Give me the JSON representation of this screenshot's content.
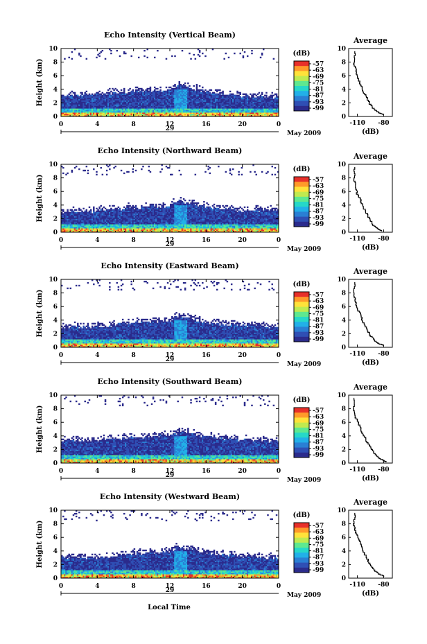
{
  "figure": {
    "xlabel": "Local Time",
    "date_label": "May 2009",
    "day_label": "29",
    "colorbar_unit": "(dB)",
    "profile_title": "Average",
    "profile_xlabel": "(dB)"
  },
  "colors": {
    "colormap": [
      "#2b2b8c",
      "#2f4fb4",
      "#2a7fd4",
      "#22b0e8",
      "#26d8c8",
      "#5ee890",
      "#c0ea50",
      "#ffe23a",
      "#ff9a2a",
      "#e8302a"
    ]
  },
  "chart_data": [
    {
      "type": "heatmap",
      "title": "Echo Intensity (Vertical Beam)",
      "ylabel": "Height (km)",
      "x_ticks": [
        "0",
        "4",
        "8",
        "12",
        "16",
        "20",
        "0"
      ],
      "y_ticks": [
        "0",
        "2",
        "4",
        "6",
        "8",
        "10"
      ],
      "xlim": [
        0,
        24
      ],
      "ylim": [
        0,
        10
      ],
      "colorbar": {
        "label": "(dB)",
        "ticks": [
          "-57",
          "-63",
          "-69",
          "-75",
          "-81",
          "-87",
          "-93",
          "-99"
        ]
      },
      "echo_top_km": [
        [
          0,
          3.0
        ],
        [
          4,
          3.2
        ],
        [
          8,
          3.7
        ],
        [
          12,
          3.9
        ],
        [
          13,
          4.6
        ],
        [
          16,
          3.6
        ],
        [
          20,
          3.0
        ],
        [
          24,
          2.8
        ]
      ],
      "profile": {
        "title": "Average",
        "xlabel": "(dB)",
        "x_ticks": [
          "-110",
          "-80"
        ],
        "y_ticks": [
          "0",
          "2",
          "4",
          "6",
          "8",
          "10"
        ],
        "points": [
          [
            -113,
            9.6
          ],
          [
            -114,
            8.0
          ],
          [
            -112,
            7.0
          ],
          [
            -110,
            6.0
          ],
          [
            -107,
            5.0
          ],
          [
            -104,
            4.0
          ],
          [
            -100,
            3.0
          ],
          [
            -96,
            2.0
          ],
          [
            -90,
            1.0
          ],
          [
            -84,
            0.5
          ],
          [
            -80,
            0.3
          ]
        ]
      }
    },
    {
      "type": "heatmap",
      "title": "Echo Intensity (Northward Beam)",
      "ylabel": "Height (km)",
      "x_ticks": [
        "0",
        "4",
        "8",
        "12",
        "16",
        "20",
        "0"
      ],
      "y_ticks": [
        "0",
        "2",
        "4",
        "6",
        "8",
        "10"
      ],
      "xlim": [
        0,
        24
      ],
      "ylim": [
        0,
        10
      ],
      "colorbar": {
        "label": "(dB)",
        "ticks": [
          "-57",
          "-63",
          "-69",
          "-75",
          "-81",
          "-87",
          "-93",
          "-99"
        ]
      },
      "echo_top_km": [
        [
          0,
          3.0
        ],
        [
          4,
          3.1
        ],
        [
          8,
          3.6
        ],
        [
          12,
          3.9
        ],
        [
          13,
          4.6
        ],
        [
          16,
          3.7
        ],
        [
          20,
          3.2
        ],
        [
          24,
          3.2
        ]
      ],
      "profile": {
        "title": "Average",
        "xlabel": "(dB)",
        "x_ticks": [
          "-110",
          "-80"
        ],
        "y_ticks": [
          "0",
          "2",
          "4",
          "6",
          "8",
          "10"
        ],
        "points": [
          [
            -113,
            9.6
          ],
          [
            -114,
            8.0
          ],
          [
            -112,
            6.8
          ],
          [
            -110,
            5.6
          ],
          [
            -107,
            5.0
          ],
          [
            -104,
            4.0
          ],
          [
            -100,
            3.0
          ],
          [
            -96,
            2.0
          ],
          [
            -91,
            1.0
          ],
          [
            -85,
            0.4
          ],
          [
            -82,
            0.2
          ]
        ]
      }
    },
    {
      "type": "heatmap",
      "title": "Echo Intensity (Eastward Beam)",
      "ylabel": "Height (km)",
      "x_ticks": [
        "0",
        "4",
        "8",
        "12",
        "16",
        "20",
        "0"
      ],
      "y_ticks": [
        "0",
        "2",
        "4",
        "6",
        "8",
        "10"
      ],
      "xlim": [
        0,
        24
      ],
      "ylim": [
        0,
        10
      ],
      "colorbar": {
        "label": "(dB)",
        "ticks": [
          "-57",
          "-63",
          "-69",
          "-75",
          "-81",
          "-87",
          "-93",
          "-99"
        ]
      },
      "echo_top_km": [
        [
          0,
          3.0
        ],
        [
          4,
          3.0
        ],
        [
          8,
          3.6
        ],
        [
          12,
          3.9
        ],
        [
          13,
          4.6
        ],
        [
          16,
          3.6
        ],
        [
          20,
          3.2
        ],
        [
          24,
          3.0
        ]
      ],
      "profile": {
        "title": "Average",
        "xlabel": "(dB)",
        "x_ticks": [
          "-110",
          "-80"
        ],
        "y_ticks": [
          "0",
          "2",
          "4",
          "6",
          "8",
          "10"
        ],
        "points": [
          [
            -113,
            9.6
          ],
          [
            -114,
            8.0
          ],
          [
            -112,
            6.8
          ],
          [
            -110,
            5.8
          ],
          [
            -107,
            5.0
          ],
          [
            -104,
            4.0
          ],
          [
            -100,
            3.0
          ],
          [
            -96,
            2.0
          ],
          [
            -90,
            1.0
          ],
          [
            -84,
            0.5
          ],
          [
            -80,
            0.3
          ]
        ]
      }
    },
    {
      "type": "heatmap",
      "title": "Echo Intensity (Southward Beam)",
      "ylabel": "Height (km)",
      "x_ticks": [
        "0",
        "4",
        "8",
        "12",
        "16",
        "20",
        "0"
      ],
      "y_ticks": [
        "0",
        "2",
        "4",
        "6",
        "8",
        "10"
      ],
      "xlim": [
        0,
        24
      ],
      "ylim": [
        0,
        10
      ],
      "colorbar": {
        "label": "(dB)",
        "ticks": [
          "-57",
          "-63",
          "-69",
          "-75",
          "-81",
          "-87",
          "-93",
          "-99"
        ]
      },
      "echo_top_km": [
        [
          0,
          3.2
        ],
        [
          4,
          3.3
        ],
        [
          8,
          3.8
        ],
        [
          12,
          4.0
        ],
        [
          13,
          4.6
        ],
        [
          16,
          3.9
        ],
        [
          20,
          3.4
        ],
        [
          24,
          3.2
        ]
      ],
      "profile": {
        "title": "Average",
        "xlabel": "(dB)",
        "x_ticks": [
          "-110",
          "-80"
        ],
        "y_ticks": [
          "0",
          "2",
          "4",
          "6",
          "8",
          "10"
        ],
        "points": [
          [
            -114,
            9.6
          ],
          [
            -114,
            8.0
          ],
          [
            -112,
            6.8
          ],
          [
            -109,
            6.0
          ],
          [
            -106,
            5.0
          ],
          [
            -102,
            4.0
          ],
          [
            -98,
            3.0
          ],
          [
            -93,
            2.0
          ],
          [
            -87,
            1.0
          ],
          [
            -80,
            0.4
          ],
          [
            -77,
            0.2
          ]
        ]
      }
    },
    {
      "type": "heatmap",
      "title": "Echo Intensity (Westward Beam)",
      "ylabel": "Height (km)",
      "x_ticks": [
        "0",
        "4",
        "8",
        "12",
        "16",
        "20",
        "0"
      ],
      "y_ticks": [
        "0",
        "2",
        "4",
        "6",
        "8",
        "10"
      ],
      "xlim": [
        0,
        24
      ],
      "ylim": [
        0,
        10
      ],
      "colorbar": {
        "label": "(dB)",
        "ticks": [
          "-57",
          "-63",
          "-69",
          "-75",
          "-81",
          "-87",
          "-93",
          "-99"
        ]
      },
      "echo_top_km": [
        [
          0,
          3.0
        ],
        [
          4,
          3.0
        ],
        [
          8,
          3.6
        ],
        [
          12,
          3.8
        ],
        [
          13,
          4.6
        ],
        [
          16,
          3.6
        ],
        [
          20,
          3.2
        ],
        [
          24,
          3.0
        ]
      ],
      "profile": {
        "title": "Average",
        "xlabel": "(dB)",
        "x_ticks": [
          "-110",
          "-80"
        ],
        "y_ticks": [
          "0",
          "2",
          "4",
          "6",
          "8",
          "10"
        ],
        "points": [
          [
            -113,
            9.6
          ],
          [
            -114,
            8.0
          ],
          [
            -112,
            6.8
          ],
          [
            -109,
            6.0
          ],
          [
            -106,
            5.0
          ],
          [
            -103,
            4.0
          ],
          [
            -99,
            3.0
          ],
          [
            -95,
            2.0
          ],
          [
            -89,
            1.0
          ],
          [
            -83,
            0.5
          ],
          [
            -79,
            0.3
          ]
        ]
      }
    }
  ]
}
